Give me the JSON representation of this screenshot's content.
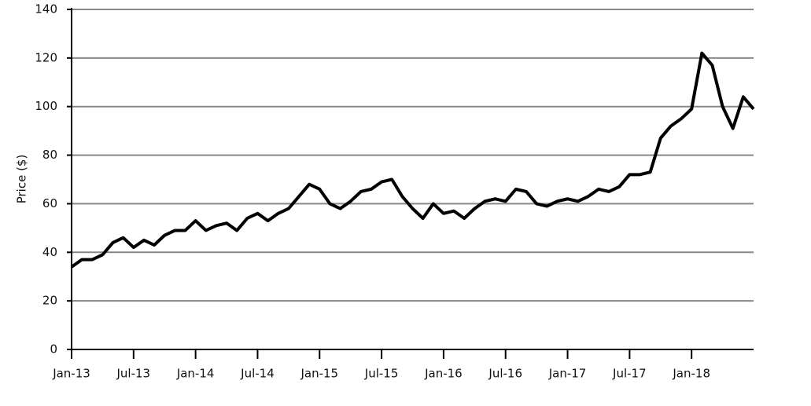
{
  "chart_data": {
    "type": "line",
    "y_label": "Price ($)",
    "x": [
      "2013-01",
      "2013-02",
      "2013-03",
      "2013-04",
      "2013-05",
      "2013-06",
      "2013-07",
      "2013-08",
      "2013-09",
      "2013-10",
      "2013-11",
      "2013-12",
      "2014-01",
      "2014-02",
      "2014-03",
      "2014-04",
      "2014-05",
      "2014-06",
      "2014-07",
      "2014-08",
      "2014-09",
      "2014-10",
      "2014-11",
      "2014-12",
      "2015-01",
      "2015-02",
      "2015-03",
      "2015-04",
      "2015-05",
      "2015-06",
      "2015-07",
      "2015-08",
      "2015-09",
      "2015-10",
      "2015-11",
      "2015-12",
      "2016-01",
      "2016-02",
      "2016-03",
      "2016-04",
      "2016-05",
      "2016-06",
      "2016-07",
      "2016-08",
      "2016-09",
      "2016-10",
      "2016-11",
      "2016-12",
      "2017-01",
      "2017-02",
      "2017-03",
      "2017-04",
      "2017-05",
      "2017-06",
      "2017-07",
      "2017-08",
      "2017-09",
      "2017-10",
      "2017-11",
      "2017-12",
      "2018-01",
      "2018-02",
      "2018-03",
      "2018-04",
      "2018-05",
      "2018-06",
      "2018-07"
    ],
    "series": [
      {
        "color": "#000000",
        "values": [
          34,
          37,
          37,
          39,
          44,
          46,
          42,
          45,
          43,
          47,
          49,
          49,
          53,
          49,
          51,
          52,
          49,
          54,
          56,
          53,
          56,
          58,
          63,
          68,
          66,
          60,
          58,
          61,
          65,
          66,
          69,
          70,
          63,
          58,
          54,
          60,
          56,
          57,
          54,
          58,
          61,
          62,
          61,
          66,
          65,
          60,
          59,
          61,
          62,
          61,
          63,
          66,
          65,
          67,
          72,
          72,
          73,
          87,
          92,
          95,
          99,
          122,
          117,
          100,
          91,
          104,
          99
        ]
      }
    ],
    "xlim": [
      "2013-01",
      "2018-07"
    ],
    "xticks": [
      {
        "value": "2013-01",
        "label": "Jan-13"
      },
      {
        "value": "2013-07",
        "label": "Jul-13"
      },
      {
        "value": "2014-01",
        "label": "Jan-14"
      },
      {
        "value": "2014-07",
        "label": "Jul-14"
      },
      {
        "value": "2015-01",
        "label": "Jan-15"
      },
      {
        "value": "2015-07",
        "label": "Jul-15"
      },
      {
        "value": "2016-01",
        "label": "Jan-16"
      },
      {
        "value": "2016-07",
        "label": "Jul-16"
      },
      {
        "value": "2017-01",
        "label": "Jan-17"
      },
      {
        "value": "2017-07",
        "label": "Jul-17"
      },
      {
        "value": "2018-01",
        "label": "Jan-18"
      }
    ],
    "ylim": [
      0,
      140
    ],
    "yticks": [
      0,
      20,
      40,
      60,
      80,
      100,
      120,
      140
    ],
    "grid": true
  }
}
